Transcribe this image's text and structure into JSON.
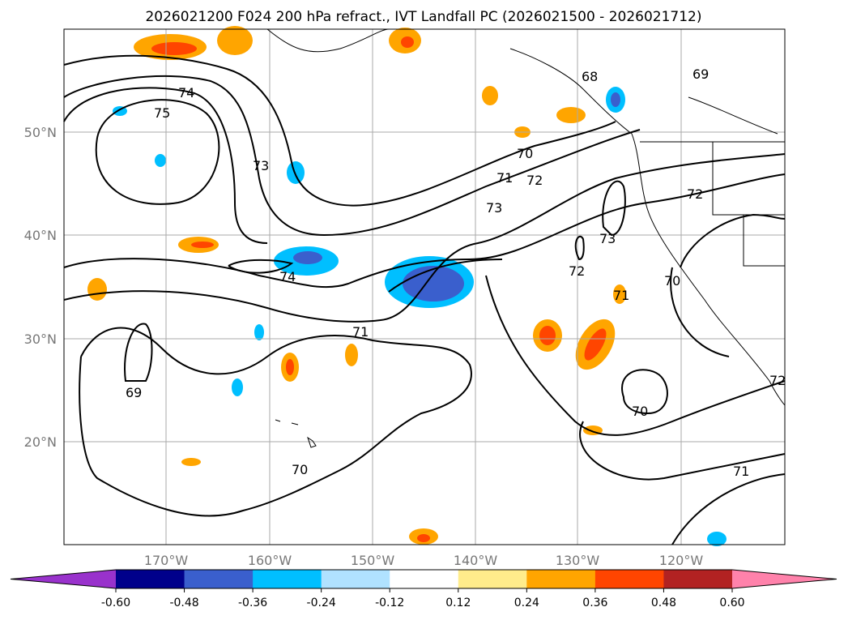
{
  "chart_data": {
    "type": "map",
    "title": "2026021200 F024 200 hPa refract., IVT Landfall PC (2026021500 - 2026021712)",
    "lon_ticks": [
      "170°W",
      "160°W",
      "150°W",
      "140°W",
      "130°W",
      "120°W"
    ],
    "lat_ticks": [
      "50°N",
      "40°N",
      "30°N",
      "20°N"
    ],
    "lon_range": [
      -178,
      -108
    ],
    "lat_range": [
      10,
      60
    ],
    "grid": true,
    "colorbar": {
      "levels": [
        "-0.60",
        "-0.48",
        "-0.36",
        "-0.24",
        "-0.12",
        "0.12",
        "0.24",
        "0.36",
        "0.48",
        "0.60"
      ],
      "colors": [
        "#9932cc",
        "#00008b",
        "#3a5fcd",
        "#00bfff",
        "#b0e2ff",
        "#ffffff",
        "#ffec8b",
        "#ffa500",
        "#ff4500",
        "#b22222",
        "#ff82ab"
      ],
      "extend": "both",
      "placement": "bottom"
    },
    "contour_labels": [
      "74",
      "75",
      "73",
      "74",
      "69",
      "70",
      "71",
      "70",
      "71",
      "72",
      "73",
      "69",
      "68",
      "72",
      "73",
      "72",
      "70",
      "70",
      "71",
      "71",
      "72"
    ]
  }
}
